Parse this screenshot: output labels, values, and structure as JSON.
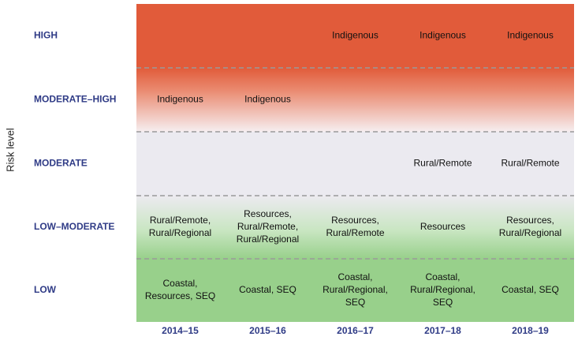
{
  "y_axis_label": "Risk level",
  "levels": [
    "HIGH",
    "MODERATE–HIGH",
    "MODERATE",
    "LOW–MODERATE",
    "LOW"
  ],
  "years": [
    "2014–15",
    "2015–16",
    "2016–17",
    "2017–18",
    "2018–19"
  ],
  "cells": [
    [
      null,
      null,
      [
        "Indigenous"
      ],
      [
        "Indigenous"
      ],
      [
        "Indigenous"
      ]
    ],
    [
      [
        "Indigenous"
      ],
      [
        "Indigenous"
      ],
      null,
      null,
      null
    ],
    [
      null,
      null,
      null,
      [
        "Rural/Remote"
      ],
      [
        "Rural/Remote"
      ]
    ],
    [
      [
        "Rural/Remote,",
        "Rural/Regional"
      ],
      [
        "Resources,",
        "Rural/Remote,",
        "Rural/Regional"
      ],
      [
        "Resources,",
        "Rural/Remote"
      ],
      [
        "Resources"
      ],
      [
        "Resources,",
        "Rural/Regional"
      ]
    ],
    [
      [
        "Coastal,",
        "Resources, SEQ"
      ],
      [
        "Coastal, SEQ"
      ],
      [
        "Coastal,",
        "Rural/Regional,",
        "SEQ"
      ],
      [
        "Coastal,",
        "Rural/Regional,",
        "SEQ"
      ],
      [
        "Coastal, SEQ"
      ]
    ]
  ]
}
